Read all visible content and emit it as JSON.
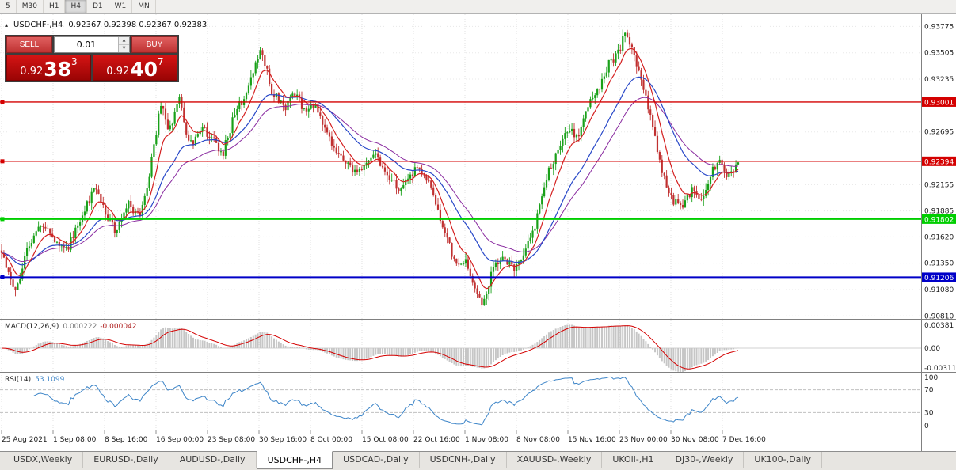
{
  "toolbar": {
    "timeframes": [
      "5",
      "M30",
      "H1",
      "H4",
      "D1",
      "W1",
      "MN"
    ],
    "active": "H4"
  },
  "icons": {
    "title_marker_icon": "▴",
    "spin_up_icon": "▲",
    "spin_down_icon": "▼"
  },
  "chart": {
    "symbol_tf": "USDCHF-,H4",
    "ohlc_line": "0.92367 0.92398 0.92367 0.92383",
    "trade_panel": {
      "sell_label": "SELL",
      "buy_label": "BUY",
      "lot": "0.01",
      "sell_price": {
        "prefix": "0.92",
        "big": "38",
        "sup": "3"
      },
      "buy_price": {
        "prefix": "0.92",
        "big": "40",
        "sup": "7"
      }
    },
    "price_axis": [
      "0.93775",
      "0.93505",
      "0.93235",
      "0.92695",
      "0.92155",
      "0.91885",
      "0.91620",
      "0.91350",
      "0.91080",
      "0.90810"
    ],
    "hlines": [
      {
        "price": 0.93001,
        "label": "0.93001",
        "color": "#d40000",
        "width": 1.4
      },
      {
        "price": 0.92394,
        "label": "0.92394",
        "color": "#d40000",
        "width": 1.4
      },
      {
        "price": 0.91802,
        "label": "0.91802",
        "color": "#00ce00",
        "width": 2
      },
      {
        "price": 0.91206,
        "label": "0.91206",
        "color": "#0000c8",
        "width": 2
      }
    ],
    "time_axis": [
      "25 Aug 2021",
      "1 Sep 08:00",
      "8 Sep 16:00",
      "16 Sep 00:00",
      "23 Sep 08:00",
      "30 Sep 16:00",
      "8 Oct 00:00",
      "15 Oct 08:00",
      "22 Oct 16:00",
      "1 Nov 08:00",
      "8 Nov 08:00",
      "15 Nov 16:00",
      "23 Nov 00:00",
      "30 Nov 08:00",
      "7 Dec 16:00"
    ]
  },
  "macd": {
    "label": "MACD(12,26,9)",
    "value1": "0.000222",
    "value2": "-0.000042",
    "axis": [
      "0.00381",
      "0.00",
      "-0.00311"
    ]
  },
  "rsi": {
    "label": "RSI(14)",
    "value": "53.1099",
    "axis": [
      "100",
      "70",
      "30",
      "0"
    ]
  },
  "tabs": [
    "USDX,Weekly",
    "EURUSD-,Daily",
    "AUDUSD-,Daily",
    "USDCHF-,H4",
    "USDCAD-,Daily",
    "USDCNH-,Daily",
    "XAUUSD-,Weekly",
    "UKOil-,H1",
    "DJ30-,Weekly",
    "UK100-,Daily"
  ],
  "active_tab": "USDCHF-,H4",
  "chart_data": {
    "type": "candlestick",
    "symbol": "USDCHF-",
    "timeframe": "H4",
    "bars": 320,
    "last_close": 0.92383,
    "price_min": 0.9078,
    "price_max": 0.939,
    "indicators": [
      "MACD(12,26,9)",
      "RSI(14)"
    ],
    "colors": {
      "up": "#18a018",
      "down": "#c03030",
      "ma_red": "#d42020",
      "ma_blue": "#2848c8",
      "ma_purple": "#8a2ca0",
      "macd_hist": "#c6c6c6",
      "macd_signal": "#d40000",
      "rsi": "#3d85c8"
    },
    "price_path_anchors": [
      [
        0,
        0.9148
      ],
      [
        0.15,
        0.9122
      ],
      [
        0.3,
        0.9108
      ],
      [
        0.5,
        0.9152
      ],
      [
        0.75,
        0.9172
      ],
      [
        1,
        0.9163
      ],
      [
        1.25,
        0.9147
      ],
      [
        1.55,
        0.9183
      ],
      [
        1.8,
        0.921
      ],
      [
        2,
        0.919
      ],
      [
        2.2,
        0.9168
      ],
      [
        2.45,
        0.9196
      ],
      [
        2.7,
        0.9182
      ],
      [
        2.9,
        0.9235
      ],
      [
        3.1,
        0.9302
      ],
      [
        3.25,
        0.9268
      ],
      [
        3.45,
        0.9308
      ],
      [
        3.65,
        0.9255
      ],
      [
        3.9,
        0.9272
      ],
      [
        4.1,
        0.9262
      ],
      [
        4.3,
        0.9248
      ],
      [
        4.55,
        0.9292
      ],
      [
        4.75,
        0.9306
      ],
      [
        4.95,
        0.9342
      ],
      [
        5.05,
        0.9352
      ],
      [
        5.25,
        0.9312
      ],
      [
        5.5,
        0.9295
      ],
      [
        5.7,
        0.9308
      ],
      [
        5.9,
        0.929
      ],
      [
        6.1,
        0.9296
      ],
      [
        6.3,
        0.9268
      ],
      [
        6.55,
        0.9246
      ],
      [
        6.8,
        0.9232
      ],
      [
        7,
        0.9226
      ],
      [
        7.2,
        0.9248
      ],
      [
        7.45,
        0.923
      ],
      [
        7.7,
        0.9212
      ],
      [
        7.9,
        0.9222
      ],
      [
        8.1,
        0.9234
      ],
      [
        8.35,
        0.9212
      ],
      [
        8.6,
        0.9165
      ],
      [
        8.85,
        0.9132
      ],
      [
        9,
        0.9138
      ],
      [
        9.2,
        0.9108
      ],
      [
        9.35,
        0.9092
      ],
      [
        9.55,
        0.9132
      ],
      [
        9.75,
        0.9142
      ],
      [
        9.95,
        0.9128
      ],
      [
        10.1,
        0.9142
      ],
      [
        10.35,
        0.9172
      ],
      [
        10.6,
        0.9225
      ],
      [
        10.85,
        0.9258
      ],
      [
        11,
        0.9272
      ],
      [
        11.2,
        0.9262
      ],
      [
        11.4,
        0.9295
      ],
      [
        11.6,
        0.9315
      ],
      [
        11.8,
        0.934
      ],
      [
        12,
        0.9352
      ],
      [
        12.1,
        0.9372
      ],
      [
        12.25,
        0.9352
      ],
      [
        12.45,
        0.9318
      ],
      [
        12.65,
        0.9272
      ],
      [
        12.85,
        0.9225
      ],
      [
        13,
        0.9202
      ],
      [
        13.2,
        0.9192
      ],
      [
        13.4,
        0.921
      ],
      [
        13.6,
        0.92
      ],
      [
        13.8,
        0.9228
      ],
      [
        13.95,
        0.9244
      ],
      [
        14.1,
        0.9222
      ],
      [
        14.3,
        0.9238
      ]
    ]
  }
}
